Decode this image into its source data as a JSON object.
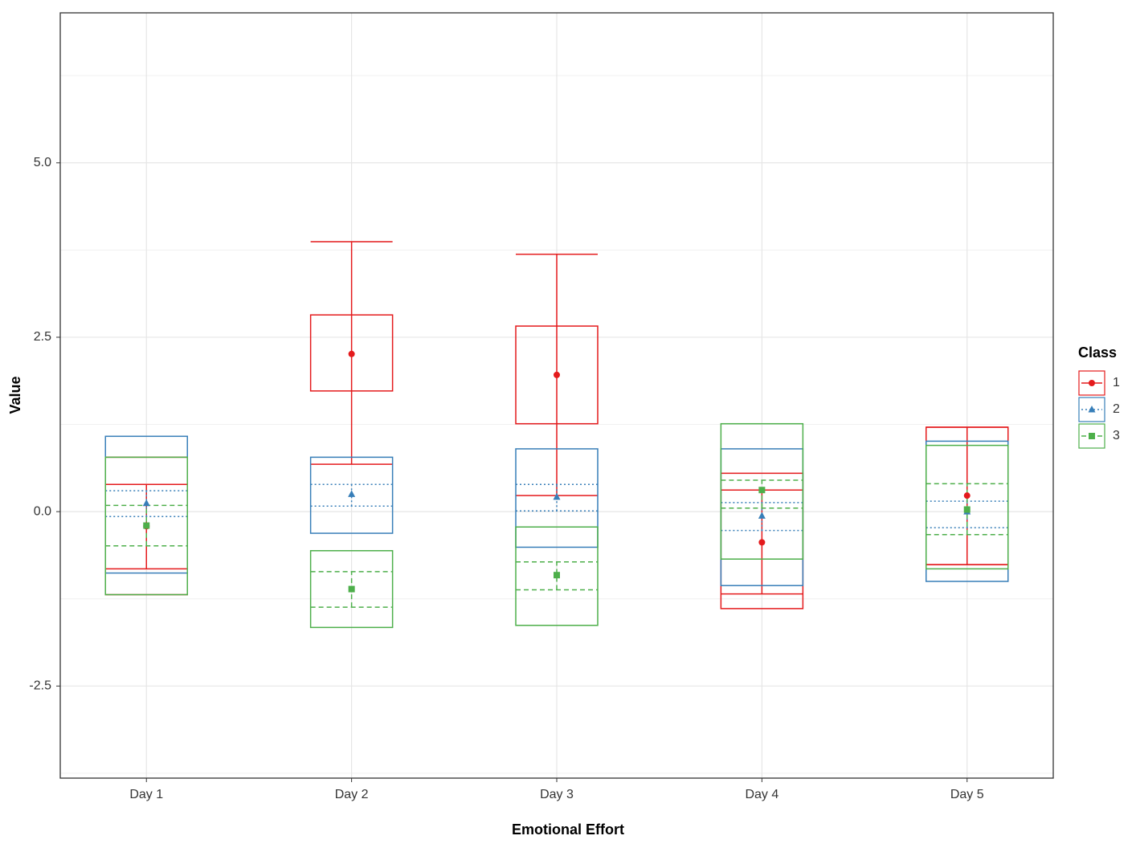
{
  "chart_data": {
    "type": "box",
    "x_label": "Emotional Effort",
    "y_label": "Value",
    "categories": [
      "Day 1",
      "Day 2",
      "Day 3",
      "Day 4",
      "Day 5"
    ],
    "ylim": [
      -3.82,
      7.15
    ],
    "yticks": [
      -2.5,
      {
        "value": 0,
        "label": "0.0"
      },
      2.5,
      {
        "value": 5,
        "label": "5.0"
      }
    ],
    "y_minor_ticks": [
      -3.75,
      -1.25,
      1.25,
      3.75,
      6.25
    ],
    "grid": true,
    "legend_title": "Class",
    "legend_position": "right",
    "series": [
      {
        "name": "1",
        "color": "#e41a1c",
        "marker": "circle",
        "linestyle": "solid",
        "box_low": [
          -1.19,
          1.73,
          1.26,
          -1.39,
          -0.76
        ],
        "box_high": [
          0.78,
          2.82,
          2.66,
          0.55,
          1.21
        ],
        "band_low": [
          -0.82,
          null,
          null,
          -1.18,
          null
        ],
        "band_high": [
          0.39,
          null,
          null,
          0.31,
          null
        ],
        "whisker_low": [
          null,
          0.68,
          0.23,
          null,
          -0.76
        ],
        "whisker_high": [
          null,
          3.87,
          3.69,
          null,
          1.21
        ],
        "mean": [
          -0.21,
          2.26,
          1.96,
          -0.44,
          0.23
        ]
      },
      {
        "name": "2",
        "color": "#377eb8",
        "marker": "triangle",
        "linestyle": "dotted",
        "box_low": [
          -0.88,
          -0.31,
          -0.51,
          -1.06,
          -1.0
        ],
        "box_high": [
          1.08,
          0.78,
          0.9,
          0.9,
          1.01
        ],
        "band_low": [
          -0.07,
          0.08,
          0.01,
          -0.27,
          -0.23
        ],
        "band_high": [
          0.3,
          0.39,
          0.39,
          0.13,
          0.15
        ],
        "whisker_low": [
          null,
          null,
          null,
          null,
          null
        ],
        "whisker_high": [
          null,
          null,
          null,
          null,
          null
        ],
        "mean": [
          0.12,
          0.25,
          0.21,
          -0.06,
          0.0
        ]
      },
      {
        "name": "3",
        "color": "#4daf4a",
        "marker": "square",
        "linestyle": "dashed",
        "box_low": [
          -1.19,
          -1.66,
          -1.63,
          -0.68,
          -0.82
        ],
        "box_high": [
          0.78,
          -0.56,
          -0.22,
          1.26,
          0.95
        ],
        "band_low": [
          -0.49,
          -1.37,
          -1.12,
          0.05,
          -0.33
        ],
        "band_high": [
          0.09,
          -0.86,
          -0.72,
          0.45,
          0.4
        ],
        "whisker_low": [
          null,
          null,
          null,
          null,
          null
        ],
        "whisker_high": [
          null,
          null,
          null,
          null,
          null
        ],
        "mean": [
          -0.2,
          -1.11,
          -0.91,
          0.31,
          0.03
        ]
      }
    ]
  }
}
